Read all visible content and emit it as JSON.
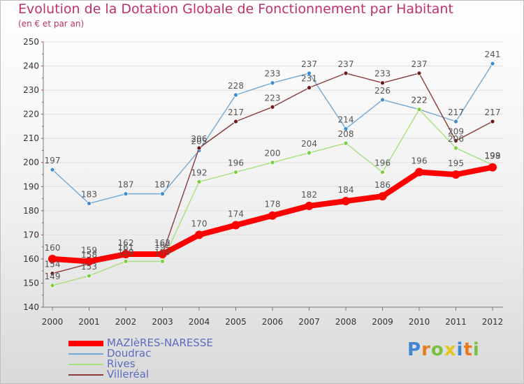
{
  "chart_data": {
    "type": "line",
    "title": "Evolution de la Dotation Globale de Fonctionnement par Habitant",
    "subtitle": "(en € et par an)",
    "xlabel": "",
    "ylabel": "",
    "ylim": [
      140,
      250
    ],
    "yticks": [
      140,
      150,
      160,
      170,
      180,
      190,
      200,
      210,
      220,
      230,
      240,
      250
    ],
    "x": [
      "2000",
      "2001",
      "2002",
      "2003",
      "2004",
      "2005",
      "2006",
      "2007",
      "2008",
      "2009",
      "2010",
      "2011",
      "2012"
    ],
    "grid": "horizontal",
    "legend_position": "bottom-left",
    "series": [
      {
        "name": "Doudrac",
        "color": "#6fa8d6",
        "marker": "#3d8ed0",
        "values": [
          197,
          183,
          187,
          187,
          205,
          228,
          233,
          237,
          214,
          226,
          222,
          217,
          241
        ]
      },
      {
        "name": "Rives",
        "color": "#a6e07c",
        "marker": "#7ccd3f",
        "values": [
          149,
          153,
          159,
          159,
          192,
          196,
          200,
          204,
          208,
          196,
          222,
          206,
          199
        ]
      },
      {
        "name": "Villeréal",
        "color": "#8a3a3a",
        "marker": "#6b1a1a",
        "values": [
          154,
          158,
          161,
          162,
          206,
          217,
          223,
          231,
          237,
          233,
          237,
          209,
          217
        ]
      },
      {
        "name": "MAZIèRES-NARESSE",
        "color": "#ff0000",
        "marker": "#ff0000",
        "values": [
          160,
          159,
          162,
          162,
          170,
          174,
          178,
          182,
          184,
          186,
          196,
          195,
          198
        ]
      }
    ],
    "legend_order": [
      "MAZIèRES-NARESSE",
      "Doudrac",
      "Rives",
      "Villeréal"
    ]
  },
  "brand": {
    "letters": [
      {
        "ch": "P",
        "color": "#3f86d4"
      },
      {
        "ch": "r",
        "color": "#e87d1e"
      },
      {
        "ch": "o",
        "color": "#7ac142"
      },
      {
        "ch": "x",
        "color": "#e8c21e"
      },
      {
        "ch": "i",
        "color": "#3f86d4"
      },
      {
        "ch": "t",
        "color": "#e87d1e"
      },
      {
        "ch": "i",
        "color": "#7ac142"
      }
    ]
  }
}
